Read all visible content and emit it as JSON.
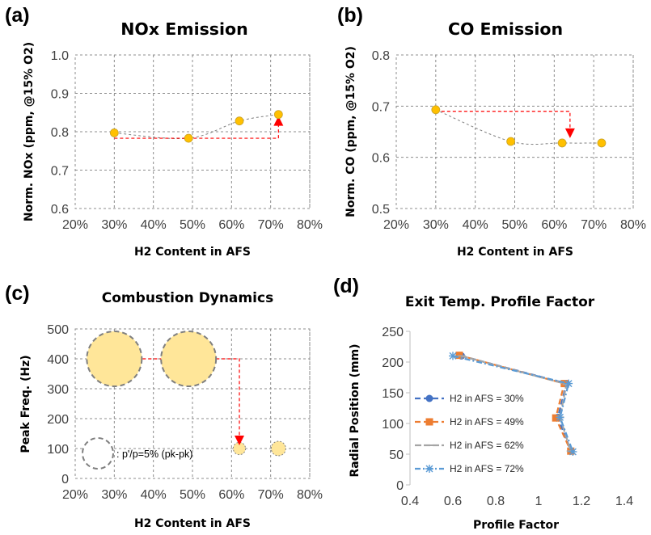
{
  "chart_data": [
    {
      "panel": "(a)",
      "type": "scatter",
      "title": "NOx Emission",
      "xlabel": "H2 Content in AFS",
      "ylabel": "Norm. NOx (ppm, @15% O2)",
      "xlim": [
        20,
        80
      ],
      "ylim": [
        0.6,
        1.0
      ],
      "xticks": [
        "20%",
        "30%",
        "40%",
        "50%",
        "60%",
        "70%",
        "80%"
      ],
      "yticks": [
        "0.6",
        "0.7",
        "0.8",
        "0.9",
        "1.0"
      ],
      "x": [
        30,
        49,
        62,
        72
      ],
      "y": [
        0.797,
        0.783,
        0.828,
        0.845
      ],
      "trend": "smooth dashed fit",
      "annotation": "red dashed arrow pointing upward at 72%"
    },
    {
      "panel": "(b)",
      "type": "scatter",
      "title": "CO Emission",
      "xlabel": "H2 Content in AFS",
      "ylabel": "Norm. CO (ppm, @15% O2)",
      "xlim": [
        20,
        80
      ],
      "ylim": [
        0.5,
        0.8
      ],
      "xticks": [
        "20%",
        "30%",
        "40%",
        "50%",
        "60%",
        "70%",
        "80%"
      ],
      "yticks": [
        "0.5",
        "0.6",
        "0.7",
        "0.8"
      ],
      "x": [
        30,
        49,
        62,
        72
      ],
      "y": [
        0.693,
        0.631,
        0.628,
        0.628
      ],
      "trend": "smooth dashed fit",
      "annotation": "red dashed arrow pointing downward near 64%"
    },
    {
      "panel": "(c)",
      "type": "scatter",
      "title": "Combustion Dynamics",
      "xlabel": "H2 Content in AFS",
      "ylabel": "Peak Freq. (Hz)",
      "xlim": [
        20,
        80
      ],
      "ylim": [
        0,
        500
      ],
      "xticks": [
        "20%",
        "30%",
        "40%",
        "50%",
        "60%",
        "70%",
        "80%"
      ],
      "yticks": [
        "0",
        "100",
        "200",
        "300",
        "400",
        "500"
      ],
      "x": [
        30,
        49,
        62,
        72
      ],
      "y": [
        400,
        400,
        100,
        100
      ],
      "bubble_amplitude": [
        1.0,
        1.0,
        0.05,
        0.07
      ],
      "legend_note": ": p'/p=5% (pk-pk)",
      "annotation": "red dashed arrow pointing downward at 62%"
    },
    {
      "panel": "(d)",
      "type": "line",
      "title": "Exit Temp. Profile Factor",
      "xlabel": "Profile Factor",
      "ylabel": "Radial Position (mm)",
      "xlim": [
        0.4,
        1.4
      ],
      "ylim": [
        0,
        250
      ],
      "xticks": [
        "0.4",
        "0.6",
        "0.8",
        "1",
        "1.2",
        "1.4"
      ],
      "yticks": [
        "0",
        "50",
        "100",
        "150",
        "200",
        "250"
      ],
      "series": [
        {
          "name": "H2 in AFS = 30%",
          "color": "#4472c4",
          "marker": "circle",
          "x": [
            0.64,
            1.13,
            1.09,
            1.15
          ],
          "y": [
            210,
            165,
            110,
            55
          ]
        },
        {
          "name": "H2 in AFS = 49%",
          "color": "#ed7d31",
          "marker": "square",
          "x": [
            0.63,
            1.12,
            1.08,
            1.15
          ],
          "y": [
            211,
            165,
            109,
            55
          ]
        },
        {
          "name": "H2 in AFS = 62%",
          "color": "#a5a5a5",
          "marker": "dash",
          "x": [
            0.64,
            1.13,
            1.1,
            1.15
          ],
          "y": [
            210,
            164,
            110,
            55
          ]
        },
        {
          "name": "H2 in AFS = 72%",
          "color": "#5b9bd5",
          "marker": "asterisk",
          "x": [
            0.6,
            1.14,
            1.1,
            1.16
          ],
          "y": [
            210,
            165,
            110,
            54
          ]
        }
      ]
    }
  ]
}
